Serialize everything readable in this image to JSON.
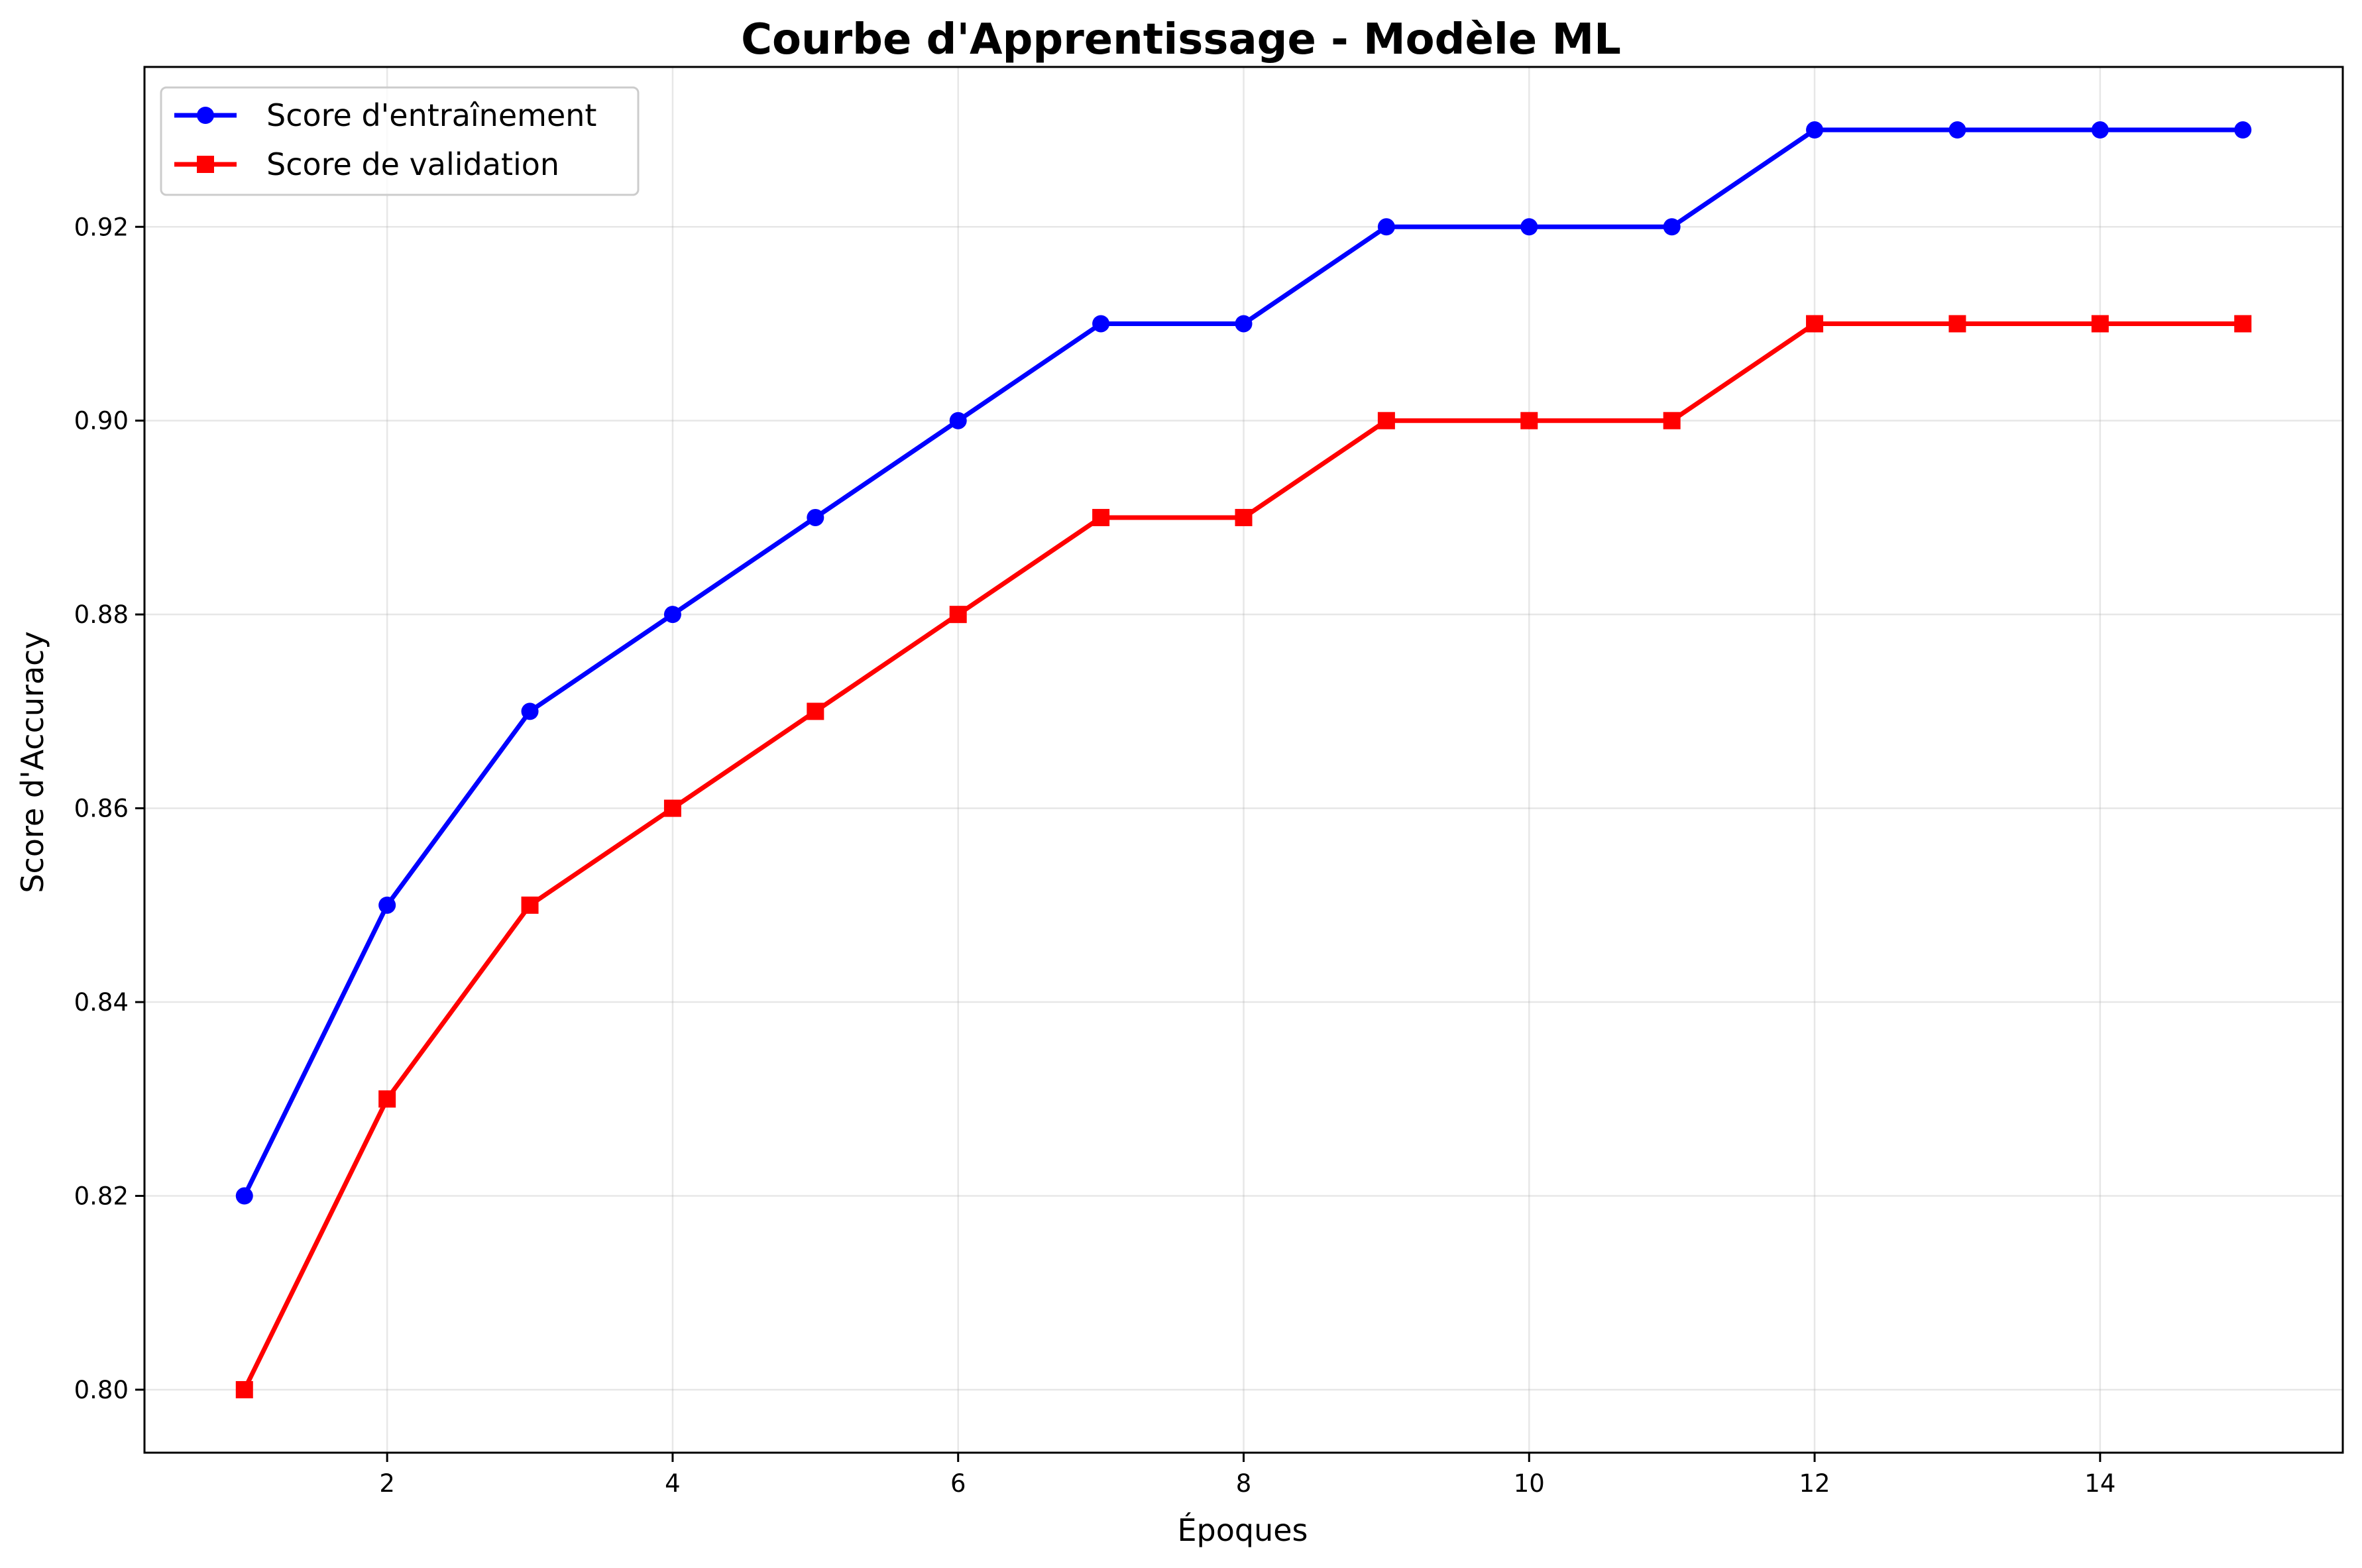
{
  "chart_data": {
    "type": "line",
    "title": "Courbe d'Apprentissage - Modèle ML",
    "xlabel": "Époques",
    "ylabel": "Score d'Accuracy",
    "x": [
      1,
      2,
      3,
      4,
      5,
      6,
      7,
      8,
      9,
      10,
      11,
      12,
      13,
      14,
      15
    ],
    "xlim": [
      0.3,
      15.7
    ],
    "ylim": [
      0.7935,
      0.9365
    ],
    "xticks": [
      2,
      4,
      6,
      8,
      10,
      12,
      14
    ],
    "yticks": [
      0.8,
      0.82,
      0.84,
      0.86,
      0.88,
      0.9,
      0.92
    ],
    "grid": true,
    "legend_position": "top-left",
    "series": [
      {
        "name": "Score d'entraînement",
        "color": "#0000ff",
        "marker": "circle",
        "values": [
          0.82,
          0.85,
          0.87,
          0.88,
          0.89,
          0.9,
          0.91,
          0.91,
          0.92,
          0.92,
          0.92,
          0.93,
          0.93,
          0.93,
          0.93
        ]
      },
      {
        "name": "Score de validation",
        "color": "#ff0000",
        "marker": "square",
        "values": [
          0.8,
          0.83,
          0.85,
          0.86,
          0.87,
          0.88,
          0.89,
          0.89,
          0.9,
          0.9,
          0.9,
          0.91,
          0.91,
          0.91,
          0.91
        ]
      }
    ]
  }
}
